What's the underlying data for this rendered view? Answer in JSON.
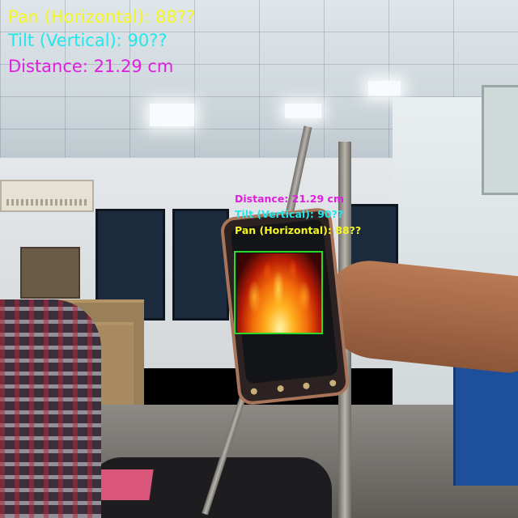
{
  "hud": {
    "pan": "Pan (Horizontal): 88??",
    "tilt": "Tilt (Vertical): 90??",
    "distance": "Distance: 21.29 cm"
  },
  "detection": {
    "distance": "Distance: 21.29 cm",
    "tilt": "Tilt (Vertical): 90??",
    "pan": "Pan (Horizontal): 88??"
  },
  "colors": {
    "pan": "#f5f524",
    "tilt": "#22e6ea",
    "distance": "#e01ee0",
    "detection_box": "#2bd92b"
  }
}
